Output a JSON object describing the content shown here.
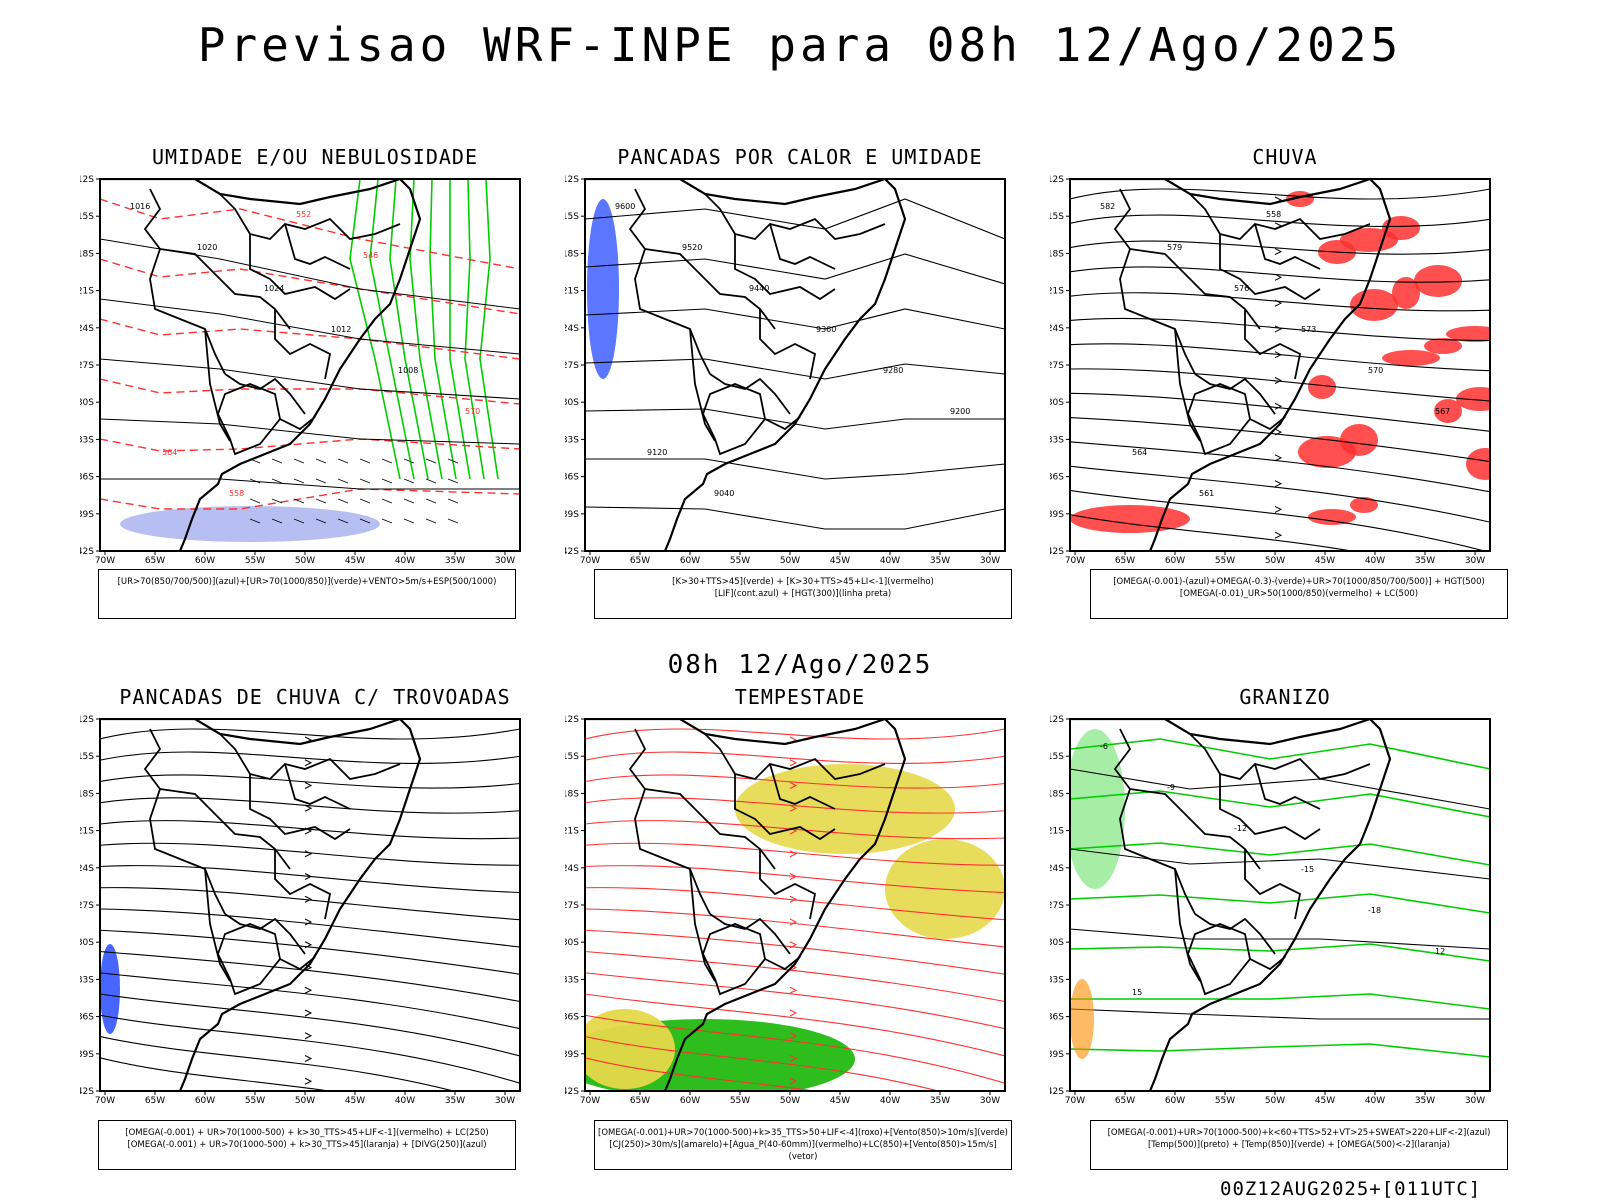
{
  "title": "Previsao WRF-INPE  para 08h 12/Ago/2025",
  "mid_title": "08h 12/Ago/2025",
  "footer": "00Z12AUG2025+[011UTC]",
  "lat_ticks": [
    "12S",
    "15S",
    "18S",
    "21S",
    "24S",
    "27S",
    "30S",
    "33S",
    "36S",
    "39S",
    "42S"
  ],
  "lon_ticks": [
    "70W",
    "65W",
    "60W",
    "55W",
    "50W",
    "45W",
    "40W",
    "35W",
    "30W"
  ],
  "colors": {
    "green": "#00cc00",
    "blue": "#3355ff",
    "red": "#ff3030",
    "lavender": "#aab4f0",
    "yellow": "#e6d84a",
    "orange": "#ff8c00"
  },
  "panels": [
    {
      "title": "UMIDADE E/OU NEBULOSIDADE",
      "legend": [
        "[UR>70(850/700/500)](azul)+[UR>70(1000/850)](verde)+VENTO>5m/s+ESP(500/1000)"
      ],
      "labels": [
        "1016",
        "1020",
        "1024",
        "1012",
        "1008",
        "570",
        "564",
        "558",
        "552",
        "546"
      ]
    },
    {
      "title": "PANCADAS POR CALOR E UMIDADE",
      "legend": [
        "[K>30+TTS>45](verde) + [K>30+TTS>45+LI<-1](vermelho)",
        "[LIF](cont.azul) + [HGT(300)](linha preta)"
      ],
      "labels": [
        "9600",
        "9520",
        "9440",
        "9360",
        "9280",
        "9200",
        "9120",
        "9040"
      ]
    },
    {
      "title": "CHUVA",
      "legend": [
        "[OMEGA(-0.001)-(azul)+OMEGA(-0.3)-(verde)+UR>70(1000/850/700/500)] + HGT(500)",
        "[OMEGA(-0.01)_UR>50(1000/850)(vermelho) + LC(500)"
      ],
      "labels": [
        "582",
        "579",
        "576",
        "573",
        "570",
        "567",
        "564",
        "561",
        "558"
      ]
    },
    {
      "title": "PANCADAS DE CHUVA C/ TROVOADAS",
      "legend": [
        "[OMEGA(-0.001) + UR>70(1000-500) + k>30_TTS>45+LIF<-1](vermelho) + LC(250)",
        "[OMEGA(-0.001) + UR>70(1000-500) + k>30_TTS>45](laranja) + [DIVG(250)](azul)"
      ],
      "labels": []
    },
    {
      "title": "TEMPESTADE",
      "legend": [
        "[OMEGA(-0.001)+UR>70(1000-500)+k>35_TTS>50+LIF<-4](roxo)+[Vento(850)>10m/s](verde)",
        "[CJ(250)>30m/s](amarelo)+[Agua_P(40-60mm)](vermelho)+LC(850)+[Vento(850)>15m/s](vetor)"
      ],
      "labels": []
    },
    {
      "title": "GRANIZO",
      "legend": [
        "[OMEGA(-0.001)+UR>70(1000-500)+k<60+TTS>52+VT>25+SWEAT>220+LIF<-2](azul)",
        "[Temp(500)](preto) + [Temp(850)](verde) + [OMEGA(500)<-2](laranja)"
      ],
      "labels": [
        "-6",
        "-9",
        "-12",
        "-15",
        "-18",
        "12",
        "15"
      ]
    }
  ]
}
